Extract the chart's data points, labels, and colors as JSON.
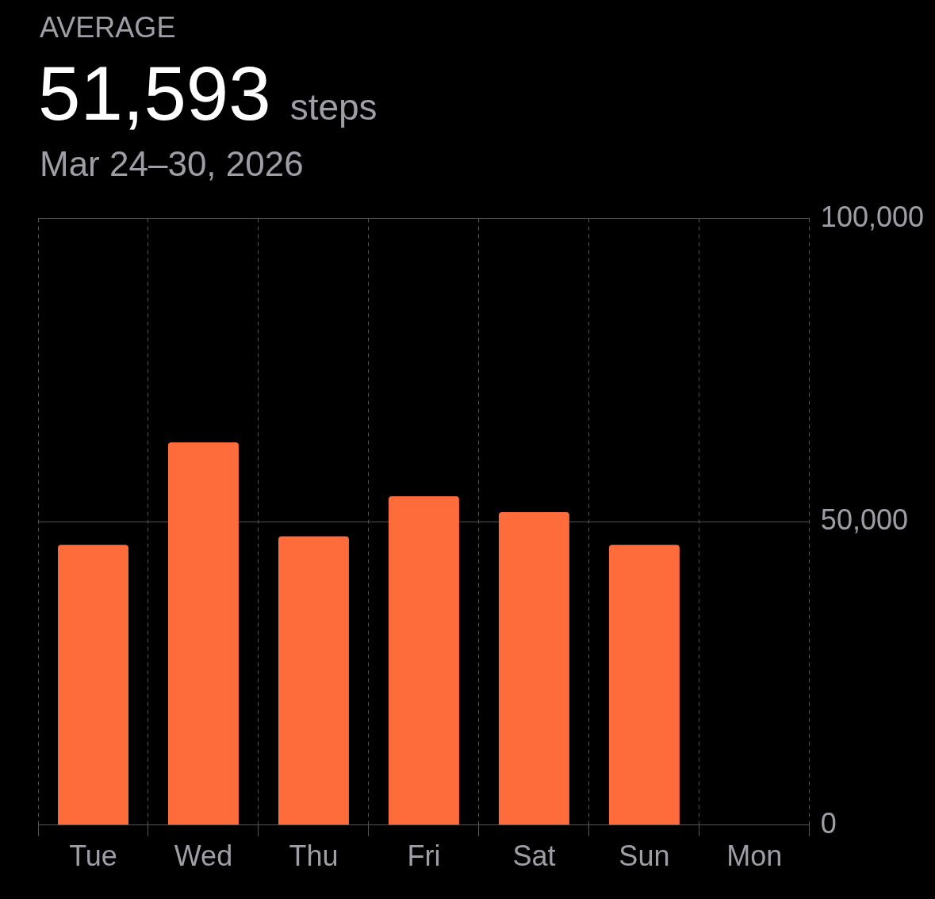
{
  "chart_data": {
    "type": "bar",
    "title": "AVERAGE",
    "annotations": [
      "51,593",
      "steps"
    ],
    "subtitle": "Mar 24–30, 2026",
    "categories": [
      "Tue",
      "Wed",
      "Thu",
      "Fri",
      "Sat",
      "Sun",
      "Mon"
    ],
    "values": [
      46200,
      63100,
      47600,
      54200,
      51600,
      46200,
      null
    ],
    "color": "#ff6c3c",
    "ylim": [
      0,
      100000
    ],
    "yticks": [
      {
        "value": 0,
        "label": "0"
      },
      {
        "value": 50000,
        "label": "50,000"
      },
      {
        "value": 100000,
        "label": "100,000"
      }
    ],
    "ref_lines": [
      {
        "axis": "y",
        "value": 50000,
        "color": "#555555"
      }
    ],
    "grid": true,
    "legend": false
  }
}
